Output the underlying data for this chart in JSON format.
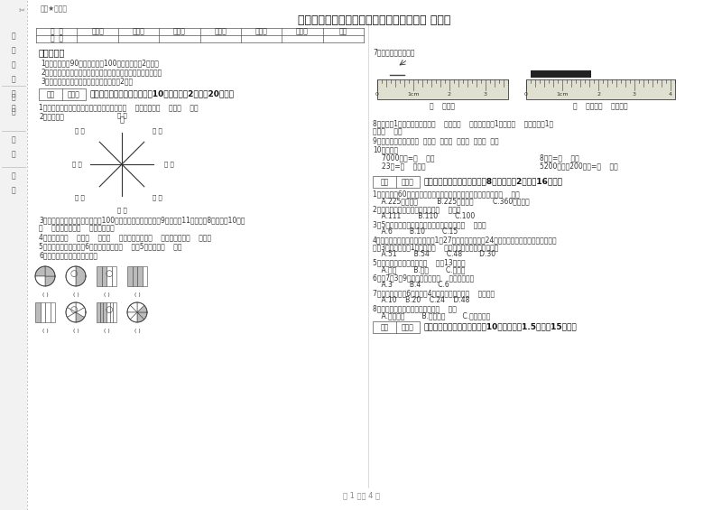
{
  "title": "湖南省实验小学三年级数学下学期月考试题 附答案",
  "subtitle": "题密★启用前",
  "bg_color": "#ffffff",
  "text_color": "#333333",
  "table_headers": [
    "题  号",
    "填空题",
    "选择题",
    "判断题",
    "计算题",
    "综合题",
    "应用题",
    "总分"
  ],
  "table_row": [
    "得  分",
    "",
    "",
    "",
    "",
    "",
    "",
    ""
  ],
  "section1_title": "考试须知：",
  "notes": [
    "1、考试时间：90分钟，满分为100分（含卷面分2分）。",
    "2、请首先按要求在试卷的指定位置填写您的姓名、班级、学号。",
    "3、不要在试卷上乱写乱画，卷面不整洁扣2分。"
  ],
  "part1_header": "一、用心思考，正确填空（共10小题，每题2分，共20分）。",
  "part1_q1": "1、在进位加法中，不管哪一位上的数相加满（    ），都要向（    ）进（    ）。",
  "part1_q2": "2、填一填。",
  "part1_q3a": "3、体育老师对第一小组同学进行100米跑测试，成绩如下小红9秒，小明11秒，小明8秒，小军10秒。",
  "part1_q3b": "（    ）跑得最快，（    ）跑得最慢。",
  "part1_q4": "4、你出生于（    ）年（    ）月（    ）日，那一年是（    ）年，全年有（    ）天。",
  "part1_q5": "5、把一根绳子平均分成6份，每份是它的（    ），5份是它的（    ）。",
  "part1_q6": "6、看图写分数，并比较大小。",
  "part2_q7": "7、量出钉子的长度。",
  "ruler1_labels": [
    "0",
    "1cm",
    "2",
    "3"
  ],
  "ruler2_labels": [
    "0",
    "1cm",
    "2",
    "3",
    "4"
  ],
  "ruler1_caption": "（    ）毫米",
  "ruler2_caption": "（    ）厘米（    ）毫米。",
  "part2_q8": "8、分针走1小格，秒针正好走（    ），是（    ）秒。分针走1大格是（    ），时针走1大",
  "part2_q8b": "格是（    ）。",
  "part2_q9": "9、常用的长度单位有（  ）、（  ）、（  ）、（  ）、（  ）。",
  "part2_q10": "10、换算。",
  "calc1": "7000千克=（    ）吨",
  "calc2": "8千克=（    ）克",
  "calc3": "23吨=（    ）千克",
  "calc4": "5200千克－200千克=（    ）吨",
  "part2_header": "二、反复比较，慎重选择（共8小题，每题2分，共16分）。",
  "mc_q1": "1、把一根长60厘米的铁丝围城一个正方形，这个正方形的面积是（    ）。",
  "mc_q1_opts": "    A.225平方分米         B.225平方厘米         C.360平方厘米",
  "mc_q2": "2、最大的三位数是最大一位数的（    ）倍。",
  "mc_q2_opts": "    A.111        B.110        C.100",
  "mc_q3": "3、5名同学打乒乓球，每两人打一场，共要打（    ）场。",
  "mc_q3_opts": "    A.6        B.10        C.15",
  "mc_q4a": "4、学校开设两个兴趣小组，三（1）27人参加书画小组，24人参加棋艺小组，两个小组都参加",
  "mc_q4b": "的有3人，那么三（1）一共有（    ）人参加了书画和棋艺小组。",
  "mc_q4_opts": "    A.51        B.54        C.48        D.30",
  "mc_q5": "5、按农历计算，有的年份（    ）有13个月。",
  "mc_q5_opts": "    A.一定        B.可能        C.不可能",
  "mc_q6": "6、用7、3、9三个数字可组成（    ）个三位数。",
  "mc_q6_opts": "    A.3        B.4        C.6",
  "mc_q7": "7、一个长方形长6厘米，宽4厘米，它的周长是（    ）厘米。",
  "mc_q7_opts": "    A.10    B.20    C.24    D.48",
  "mc_q8": "8、下面现象中属于平移现象的是（    ）。",
  "mc_q8_opts": "    A.开关抽屉        B.打开瓶盖        C.转动的风车",
  "part3_header": "三、仔细推敲，正确判断（共10小题，每题1.5分，共15分）。",
  "page_footer": "第 1 页共 4 页",
  "defen_label": "得分",
  "pingjuan_label": "评卷人",
  "north_label": "北",
  "side_xue": "学",
  "side_xiao": "校",
  "side_kai": "（",
  "side_gai": "盖",
  "side_zhang": "章",
  "side_close": "）",
  "side_ban": "班",
  "side_ji": "级",
  "side_xing": "姓",
  "side_ming": "名",
  "side_xue2": "学",
  "side_hao": "号"
}
